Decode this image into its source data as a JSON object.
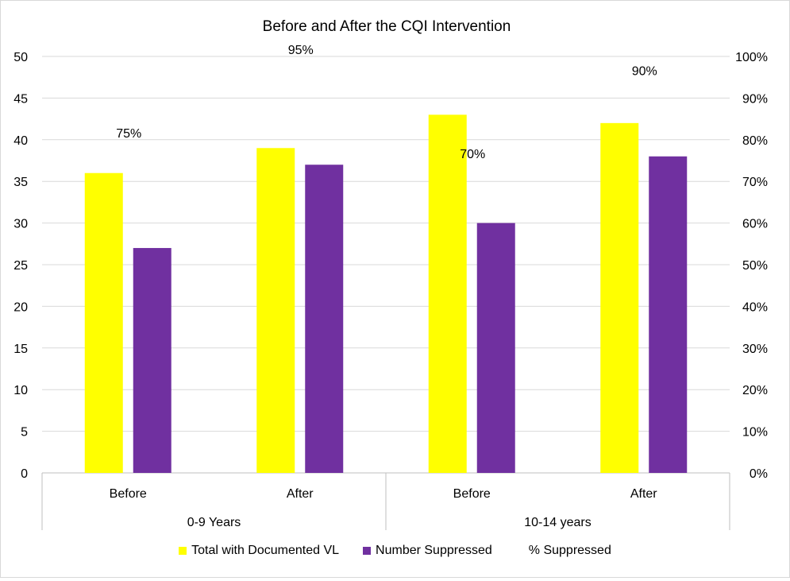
{
  "chart_data": {
    "type": "bar",
    "title": "Before and After the CQI Intervention",
    "groups": [
      {
        "label": "0-9 Years",
        "categories": [
          "Before",
          "After"
        ]
      },
      {
        "label": "10-14 years",
        "categories": [
          "Before",
          "After"
        ]
      }
    ],
    "categories": [
      "Before",
      "After",
      "Before",
      "After"
    ],
    "series": [
      {
        "name": "Total with Documented VL",
        "color": "#FFFF00",
        "axis": "left",
        "values": [
          36,
          39,
          43,
          42
        ]
      },
      {
        "name": "Number Suppressed",
        "color": "#7030A0",
        "axis": "left",
        "values": [
          27,
          37,
          30,
          38
        ]
      },
      {
        "name": "% Suppressed",
        "axis": "right",
        "type": "label",
        "values": [
          75,
          95,
          70,
          90
        ],
        "labels": [
          "75%",
          "95%",
          "70%",
          "90%"
        ]
      }
    ],
    "ylim": [
      0,
      50
    ],
    "yticks": [
      "0",
      "5",
      "10",
      "15",
      "20",
      "25",
      "30",
      "35",
      "40",
      "45",
      "50"
    ],
    "y2lim": [
      0,
      100
    ],
    "y2ticks": [
      "0%",
      "10%",
      "20%",
      "30%",
      "40%",
      "50%",
      "60%",
      "70%",
      "80%",
      "90%",
      "100%"
    ],
    "grid": true,
    "legend_position": "bottom"
  }
}
